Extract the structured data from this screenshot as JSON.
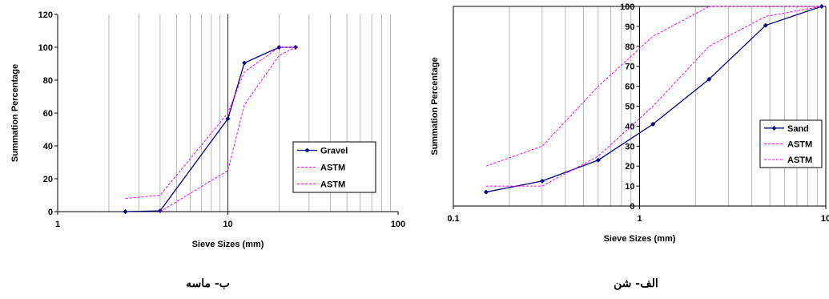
{
  "chart_data": [
    {
      "type": "line",
      "xscale": "log",
      "xlim": [
        1,
        100
      ],
      "ylim": [
        0,
        120
      ],
      "xticks": [
        1,
        10,
        100
      ],
      "xtick_labels": [
        "1",
        "10",
        "100"
      ],
      "yticks": [
        0,
        20,
        40,
        60,
        80,
        100,
        120
      ],
      "ytick_labels": [
        "0",
        "20",
        "40",
        "60",
        "80",
        "100",
        "120"
      ],
      "xlabel": "Sieve Sizes (mm)",
      "ylabel": "Summation Percentage",
      "grid": "vertical-log",
      "legend": "right",
      "caption": "ب- ماسه",
      "series": [
        {
          "name": "Gravel",
          "color": "#000080",
          "style": "solid-marker",
          "x": [
            2.5,
            4,
            10,
            12.5,
            20,
            25
          ],
          "y": [
            0,
            0.5,
            56.5,
            90.5,
            100,
            100
          ]
        },
        {
          "name": "ASTM",
          "color": "#FF00FF",
          "style": "dashed",
          "x": [
            2.5,
            4,
            10,
            12.5,
            20,
            25
          ],
          "y": [
            8,
            10,
            60,
            85,
            100,
            100
          ]
        },
        {
          "name": "ASTM",
          "color": "#FF00FF",
          "style": "dashed",
          "x": [
            4,
            10,
            12.5,
            20,
            25
          ],
          "y": [
            0,
            25,
            65,
            95,
            100
          ]
        }
      ]
    },
    {
      "type": "line",
      "xscale": "log",
      "xlim": [
        0.1,
        10
      ],
      "ylim": [
        0,
        100
      ],
      "xticks": [
        0.1,
        1,
        10
      ],
      "xtick_labels": [
        "0.1",
        "1",
        "10"
      ],
      "yticks": [
        0,
        10,
        20,
        30,
        40,
        50,
        60,
        70,
        80,
        90,
        100
      ],
      "ytick_labels": [
        "0",
        "10",
        "20",
        "30",
        "40",
        "50",
        "60",
        "70",
        "80",
        "90",
        "100"
      ],
      "xlabel": "Sieve Sizes (mm)",
      "ylabel": "Summation Percentage",
      "grid": "vertical-log",
      "legend": "right",
      "caption": "الف- شن",
      "series": [
        {
          "name": "Sand",
          "color": "#000080",
          "style": "solid-marker",
          "x": [
            0.15,
            0.3,
            0.6,
            1.18,
            2.36,
            4.75,
            9.5
          ],
          "y": [
            7,
            12.5,
            23,
            41,
            63.5,
            90.5,
            100
          ]
        },
        {
          "name": "ASTM",
          "color": "#FF00FF",
          "style": "dashed",
          "x": [
            0.15,
            0.3,
            0.6,
            1.18,
            2.36,
            4.75,
            9.5
          ],
          "y": [
            20,
            30,
            60,
            85,
            100,
            100,
            100
          ]
        },
        {
          "name": "ASTM",
          "color": "#FF00FF",
          "style": "dashed",
          "x": [
            0.15,
            0.3,
            0.6,
            1.18,
            2.36,
            4.75,
            9.5
          ],
          "y": [
            10,
            10,
            25,
            50,
            80,
            95,
            100
          ]
        }
      ]
    }
  ]
}
